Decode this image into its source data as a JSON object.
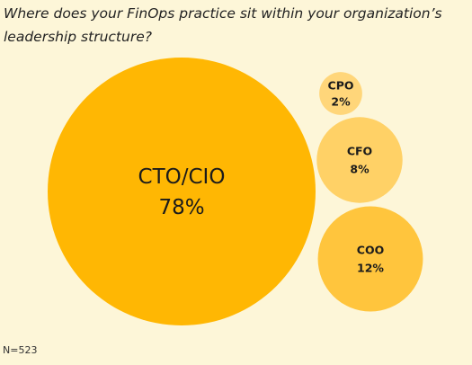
{
  "chart_data": {
    "type": "bubble",
    "title": "Where does your FinOps practice sit within your organization’s leadership structure?",
    "categories": [
      "CTO/CIO",
      "CPO",
      "CFO",
      "COO"
    ],
    "values": [
      78,
      2,
      8,
      12
    ],
    "value_labels": [
      "78%",
      "2%",
      "8%",
      "12%"
    ],
    "unit": "%",
    "note": "N=523",
    "colors": {
      "CTO/CIO": "#ffb703",
      "CPO": "#ffd67a",
      "CFO": "#ffd166",
      "COO": "#ffc53d"
    }
  }
}
